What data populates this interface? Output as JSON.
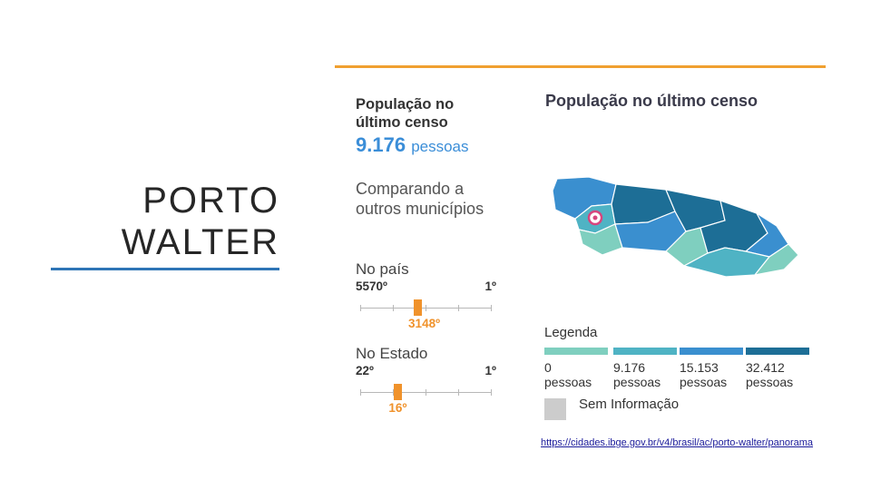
{
  "slide": {
    "title_line1": "PORTO",
    "title_line2": "WALTER",
    "source_url": "https://cidades.ibge.gov.br/v4/brasil/ac/porto-walter/panorama"
  },
  "stats": {
    "heading": "População no último censo",
    "value": "9.176",
    "unit": "pessoas",
    "compare_heading": "Comparando a outros municípios",
    "country": {
      "title": "No país",
      "low_label": "5570º",
      "high_label": "1º",
      "value_label": "3148º",
      "rank": 3148,
      "total": 5570
    },
    "state": {
      "title": "No Estado",
      "low_label": "22º",
      "high_label": "1º",
      "value_label": "16º",
      "rank": 16,
      "total": 22
    }
  },
  "map": {
    "title": "População no último censo",
    "legend_title": "Legenda",
    "legend": [
      {
        "label_value": "0",
        "label_unit": "pessoas",
        "color": "#7fcfbf"
      },
      {
        "label_value": "9.176",
        "label_unit": "pessoas",
        "color": "#4fb3c4"
      },
      {
        "label_value": "15.153",
        "label_unit": "pessoas",
        "color": "#3a8fcf"
      },
      {
        "label_value": "32.412",
        "label_unit": "pessoas",
        "color": "#1d6e96"
      }
    ],
    "no_info_label": "Sem Informação",
    "no_info_color": "#cccccc",
    "marker_color": "#d6457e",
    "accent_color": "#f0a030"
  }
}
